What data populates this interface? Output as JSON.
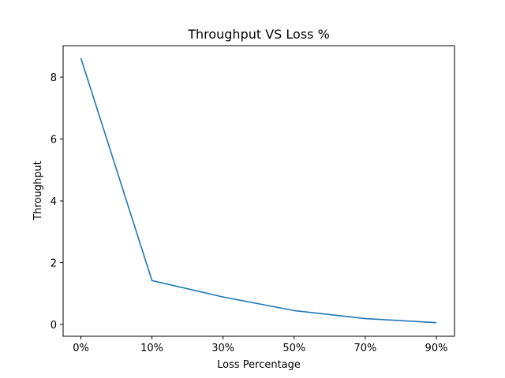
{
  "chart_data": {
    "type": "line",
    "title": "Throughput VS Loss %",
    "xlabel": "Loss Percentage",
    "ylabel": "Throughput",
    "categories": [
      "0%",
      "10%",
      "30%",
      "50%",
      "70%",
      "90%"
    ],
    "yticks": [
      0,
      2,
      4,
      6,
      8
    ],
    "ylim": [
      -0.38,
      9.02
    ],
    "grid": false,
    "legend": "none",
    "series": [
      {
        "color": "#1f77b4",
        "values": [
          8.62,
          1.42,
          0.89,
          0.45,
          0.19,
          0.06
        ]
      }
    ]
  }
}
